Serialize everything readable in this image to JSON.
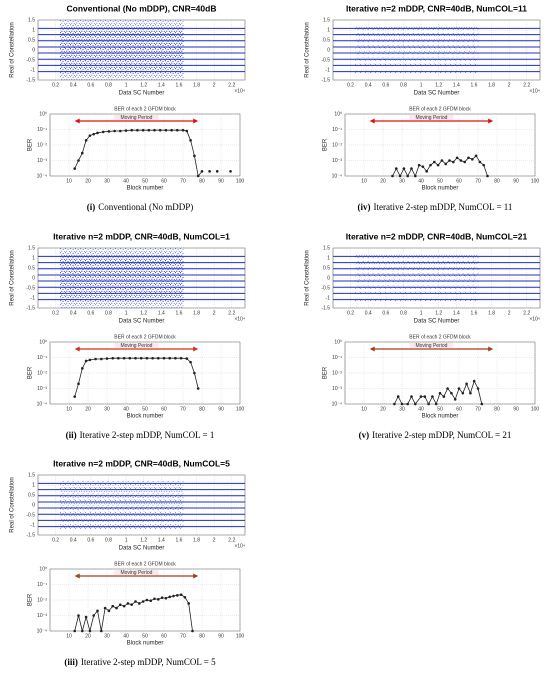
{
  "chart_data": [
    {
      "caption_label": "(i)",
      "caption": "Conventional (No mDDP)",
      "constellation": {
        "type": "constellation",
        "title": "Conventional (No mDDP), CNR=40dB",
        "x_label": "Data SC Number",
        "y_label": "Real of Constellation",
        "x_exponent": "×10⁴",
        "xlim": [
          0,
          23500
        ],
        "xticks": [
          {
            "value": 2000,
            "label": "0.2"
          },
          {
            "value": 4000,
            "label": "0.4"
          },
          {
            "value": 6000,
            "label": "0.6"
          },
          {
            "value": 8000,
            "label": "0.8"
          },
          {
            "value": 10000,
            "label": "1"
          },
          {
            "value": 12000,
            "label": "1.2"
          },
          {
            "value": 14000,
            "label": "1.4"
          },
          {
            "value": 16000,
            "label": "1.6"
          },
          {
            "value": 18000,
            "label": "1.8"
          },
          {
            "value": 20000,
            "label": "2"
          },
          {
            "value": 22000,
            "label": "2.2"
          }
        ],
        "ylim": [
          -1.5,
          1.5
        ],
        "yticks": [
          -1.5,
          -1,
          -0.5,
          0,
          0.5,
          1,
          1.5
        ],
        "levels": [
          -1.08,
          -0.77,
          -0.46,
          -0.15,
          0.15,
          0.46,
          0.77,
          1.08
        ],
        "noisy_range": [
          2500,
          16500
        ],
        "noise_spread": 0.5,
        "color": "#1f2fbf",
        "grid": true
      },
      "ber": {
        "type": "line",
        "title": "BER of each 2 GFDM block",
        "x_label": "Block number",
        "y_label": "BER",
        "log_y": true,
        "annotation": "Moving Period",
        "annotation_range": [
          13,
          78
        ],
        "annotation_color": "#e01010",
        "xlim": [
          0,
          100
        ],
        "xticks": [
          10,
          20,
          30,
          40,
          50,
          60,
          70,
          80,
          90,
          100
        ],
        "ylim": [
          0.0001,
          1
        ],
        "yticks": [
          {
            "value": 0.0001,
            "label": "10⁻⁴"
          },
          {
            "value": 0.001,
            "label": "10⁻³"
          },
          {
            "value": 0.01,
            "label": "10⁻²"
          },
          {
            "value": 0.1,
            "label": "10⁻¹"
          },
          {
            "value": 1,
            "label": "10⁰"
          }
        ],
        "color": "#222222",
        "grid": true,
        "x": [
          13,
          15,
          17,
          19,
          21,
          23,
          25,
          28,
          31,
          34,
          37,
          40,
          43,
          46,
          49,
          52,
          55,
          58,
          61,
          64,
          67,
          70,
          72,
          74,
          76,
          78,
          80,
          82,
          84,
          86,
          88,
          90,
          95
        ],
        "values": [
          0.0003,
          0.001,
          0.003,
          0.02,
          0.04,
          0.05,
          0.06,
          0.07,
          0.075,
          0.08,
          0.08,
          0.085,
          0.09,
          0.09,
          0.09,
          0.09,
          0.09,
          0.09,
          0.09,
          0.09,
          0.09,
          0.09,
          0.08,
          0.02,
          0.002,
          0.0001,
          0.0002,
          null,
          0.0002,
          null,
          0.0002,
          null,
          0.0002
        ]
      }
    },
    {
      "caption_label": "(ii)",
      "caption": "Iterative 2-step mDDP, NumCOL = 1",
      "constellation": {
        "type": "constellation",
        "title": "Iterative n=2 mDDP, CNR=40dB, NumCOL=1",
        "x_label": "Data SC Number",
        "y_label": "Real of Constellation",
        "x_exponent": "×10⁴",
        "xlim": [
          0,
          23500
        ],
        "xticks": [
          {
            "value": 2000,
            "label": "0.2"
          },
          {
            "value": 4000,
            "label": "0.4"
          },
          {
            "value": 6000,
            "label": "0.6"
          },
          {
            "value": 8000,
            "label": "0.8"
          },
          {
            "value": 10000,
            "label": "1"
          },
          {
            "value": 12000,
            "label": "1.2"
          },
          {
            "value": 14000,
            "label": "1.4"
          },
          {
            "value": 16000,
            "label": "1.6"
          },
          {
            "value": 18000,
            "label": "1.8"
          },
          {
            "value": 20000,
            "label": "2"
          },
          {
            "value": 22000,
            "label": "2.2"
          }
        ],
        "ylim": [
          -1.5,
          1.5
        ],
        "yticks": [
          -1.5,
          -1,
          -0.5,
          0,
          0.5,
          1,
          1.5
        ],
        "levels": [
          -1.08,
          -0.77,
          -0.46,
          -0.15,
          0.15,
          0.46,
          0.77,
          1.08
        ],
        "noisy_range": [
          2500,
          16500
        ],
        "noise_spread": 0.5,
        "color": "#1f2fbf",
        "grid": true
      },
      "ber": {
        "type": "line",
        "title": "BER of each 2 GFDM block",
        "x_label": "Block number",
        "y_label": "BER",
        "log_y": true,
        "annotation": "Moving Period",
        "annotation_range": [
          13,
          78
        ],
        "annotation_color": "#d0301a",
        "xlim": [
          0,
          100
        ],
        "xticks": [
          10,
          20,
          30,
          40,
          50,
          60,
          70,
          80,
          90,
          100
        ],
        "ylim": [
          0.0001,
          1
        ],
        "yticks": [
          {
            "value": 0.0001,
            "label": "10⁻⁴"
          },
          {
            "value": 0.001,
            "label": "10⁻³"
          },
          {
            "value": 0.01,
            "label": "10⁻²"
          },
          {
            "value": 0.1,
            "label": "10⁻¹"
          },
          {
            "value": 1,
            "label": "10⁰"
          }
        ],
        "color": "#222222",
        "grid": true,
        "x": [
          13,
          15,
          17,
          19,
          21,
          24,
          27,
          30,
          33,
          36,
          39,
          42,
          45,
          48,
          51,
          54,
          57,
          60,
          63,
          66,
          69,
          72,
          74,
          76,
          78
        ],
        "values": [
          0.0003,
          0.002,
          0.02,
          0.06,
          0.07,
          0.08,
          0.08,
          0.085,
          0.09,
          0.09,
          0.09,
          0.09,
          0.09,
          0.09,
          0.09,
          0.09,
          0.09,
          0.09,
          0.09,
          0.09,
          0.09,
          0.085,
          0.05,
          0.01,
          0.001
        ]
      }
    },
    {
      "caption_label": "(iii)",
      "caption": "Iterative 2-step mDDP, NumCOL = 5",
      "constellation": {
        "type": "constellation",
        "title": "Iterative n=2 mDDP, CNR=40dB, NumCOL=5",
        "x_label": "Data SC Number",
        "y_label": "Real of Constellation",
        "x_exponent": "×10⁴",
        "xlim": [
          0,
          23500
        ],
        "xticks": [
          {
            "value": 2000,
            "label": "0.2"
          },
          {
            "value": 4000,
            "label": "0.4"
          },
          {
            "value": 6000,
            "label": "0.6"
          },
          {
            "value": 8000,
            "label": "0.8"
          },
          {
            "value": 10000,
            "label": "1"
          },
          {
            "value": 12000,
            "label": "1.2"
          },
          {
            "value": 14000,
            "label": "1.4"
          },
          {
            "value": 16000,
            "label": "1.6"
          },
          {
            "value": 18000,
            "label": "1.8"
          },
          {
            "value": 20000,
            "label": "2"
          },
          {
            "value": 22000,
            "label": "2.2"
          }
        ],
        "ylim": [
          -1.5,
          1.5
        ],
        "yticks": [
          -1.5,
          -1,
          -0.5,
          0,
          0.5,
          1,
          1.5
        ],
        "levels": [
          -1.08,
          -0.77,
          -0.46,
          -0.15,
          0.15,
          0.46,
          0.77,
          1.08
        ],
        "noisy_range": [
          2500,
          16500
        ],
        "noise_spread": 0.12,
        "color": "#1f2fbf",
        "grid": true
      },
      "ber": {
        "type": "line",
        "title": "BER of each 2 GFDM block",
        "x_label": "Block number",
        "y_label": "BER",
        "log_y": true,
        "annotation": "Moving Period",
        "annotation_range": [
          13,
          78
        ],
        "annotation_color": "#a0401a",
        "xlim": [
          0,
          100
        ],
        "xticks": [
          10,
          20,
          30,
          40,
          50,
          60,
          70,
          80,
          90,
          100
        ],
        "ylim": [
          0.0001,
          1
        ],
        "yticks": [
          {
            "value": 0.0001,
            "label": "10⁻⁴"
          },
          {
            "value": 0.001,
            "label": "10⁻³"
          },
          {
            "value": 0.01,
            "label": "10⁻²"
          },
          {
            "value": 0.1,
            "label": "10⁻¹"
          },
          {
            "value": 1,
            "label": "10⁰"
          }
        ],
        "color": "#222222",
        "grid": true,
        "x": [
          13,
          15,
          17,
          19,
          21,
          23,
          25,
          27,
          29,
          31,
          33,
          35,
          37,
          39,
          41,
          43,
          45,
          47,
          49,
          51,
          53,
          55,
          57,
          59,
          61,
          63,
          65,
          67,
          69,
          71,
          73,
          75
        ],
        "values": [
          0.0001,
          0.001,
          0.0001,
          0.0008,
          0.0001,
          0.001,
          0.002,
          0.0001,
          0.003,
          0.002,
          0.004,
          0.003,
          0.005,
          0.004,
          0.006,
          0.005,
          0.008,
          0.006,
          0.008,
          0.01,
          0.009,
          0.012,
          0.011,
          0.014,
          0.013,
          0.016,
          0.018,
          0.02,
          0.022,
          0.015,
          0.006,
          0.0001
        ]
      }
    },
    {
      "caption_label": "(iv)",
      "caption": "Iterative 2-step mDDP, NumCOL = 11",
      "constellation": {
        "type": "constellation",
        "title": "Iterative n=2 mDDP, CNR=40dB, NumCOL=11",
        "x_label": "Data SC Number",
        "y_label": "Real of Constellation",
        "x_exponent": "×10⁴",
        "xlim": [
          0,
          23500
        ],
        "xticks": [
          {
            "value": 2000,
            "label": "0.2"
          },
          {
            "value": 4000,
            "label": "0.4"
          },
          {
            "value": 6000,
            "label": "0.6"
          },
          {
            "value": 8000,
            "label": "0.8"
          },
          {
            "value": 10000,
            "label": "1"
          },
          {
            "value": 12000,
            "label": "1.2"
          },
          {
            "value": 14000,
            "label": "1.4"
          },
          {
            "value": 16000,
            "label": "1.6"
          },
          {
            "value": 18000,
            "label": "1.8"
          },
          {
            "value": 20000,
            "label": "2"
          },
          {
            "value": 22000,
            "label": "2.2"
          }
        ],
        "ylim": [
          -1.5,
          1.5
        ],
        "yticks": [
          -1.5,
          -1,
          -0.5,
          0,
          0.5,
          1,
          1.5
        ],
        "levels": [
          -1.08,
          -0.77,
          -0.46,
          -0.15,
          0.15,
          0.46,
          0.77,
          1.08
        ],
        "noisy_range": [
          2500,
          16500
        ],
        "noise_spread": 0.08,
        "color": "#1f2fbf",
        "grid": true
      },
      "ber": {
        "type": "line",
        "title": "BER of each 2 GFDM block",
        "x_label": "Block number",
        "y_label": "BER",
        "log_y": true,
        "annotation": "Moving Period",
        "annotation_range": [
          13,
          78
        ],
        "annotation_color": "#e01010",
        "xlim": [
          0,
          100
        ],
        "xticks": [
          10,
          20,
          30,
          40,
          50,
          60,
          70,
          80,
          90,
          100
        ],
        "ylim": [
          0.0001,
          1
        ],
        "yticks": [
          {
            "value": 0.0001,
            "label": "10⁻⁴"
          },
          {
            "value": 0.001,
            "label": "10⁻³"
          },
          {
            "value": 0.01,
            "label": "10⁻²"
          },
          {
            "value": 0.1,
            "label": "10⁻¹"
          },
          {
            "value": 1,
            "label": "10⁰"
          }
        ],
        "color": "#222222",
        "grid": true,
        "x": [
          25,
          27,
          29,
          31,
          33,
          35,
          37,
          39,
          41,
          43,
          45,
          47,
          49,
          51,
          53,
          55,
          57,
          59,
          61,
          63,
          65,
          67,
          69,
          71,
          73,
          75
        ],
        "values": [
          0.0001,
          0.0003,
          0.0001,
          0.0003,
          0.0001,
          0.0003,
          0.0001,
          0.0005,
          0.0004,
          0.0002,
          0.0005,
          0.0008,
          0.0005,
          0.001,
          0.0006,
          0.001,
          0.0008,
          0.0015,
          0.001,
          0.0008,
          0.0015,
          0.0012,
          0.002,
          0.0008,
          0.0005,
          0.0001
        ]
      }
    },
    {
      "caption_label": "(v)",
      "caption": "Iterative 2-step mDDP, NumCOL = 21",
      "constellation": {
        "type": "constellation",
        "title": "Iterative n=2 mDDP, CNR=40dB, NumCOL=21",
        "x_label": "Data SC Number",
        "y_label": "Real of Constellation",
        "x_exponent": "×10⁴",
        "xlim": [
          0,
          23500
        ],
        "xticks": [
          {
            "value": 2000,
            "label": "0.2"
          },
          {
            "value": 4000,
            "label": "0.4"
          },
          {
            "value": 6000,
            "label": "0.6"
          },
          {
            "value": 8000,
            "label": "0.8"
          },
          {
            "value": 10000,
            "label": "1"
          },
          {
            "value": 12000,
            "label": "1.2"
          },
          {
            "value": 14000,
            "label": "1.4"
          },
          {
            "value": 16000,
            "label": "1.6"
          },
          {
            "value": 18000,
            "label": "1.8"
          },
          {
            "value": 20000,
            "label": "2"
          },
          {
            "value": 22000,
            "label": "2.2"
          }
        ],
        "ylim": [
          -1.5,
          1.5
        ],
        "yticks": [
          -1.5,
          -1,
          -0.5,
          0,
          0.5,
          1,
          1.5
        ],
        "levels": [
          -1.08,
          -0.77,
          -0.46,
          -0.15,
          0.15,
          0.46,
          0.77,
          1.08
        ],
        "noisy_range": [
          2500,
          16500
        ],
        "noise_spread": 0.08,
        "color": "#1f2fbf",
        "grid": true
      },
      "ber": {
        "type": "line",
        "title": "BER of each 2 GFDM block",
        "x_label": "Block number",
        "y_label": "BER",
        "log_y": true,
        "annotation": "Moving Period",
        "annotation_range": [
          13,
          78
        ],
        "annotation_color": "#a0401a",
        "xlim": [
          0,
          100
        ],
        "xticks": [
          10,
          20,
          30,
          40,
          50,
          60,
          70,
          80,
          90,
          100
        ],
        "ylim": [
          0.0001,
          1
        ],
        "yticks": [
          {
            "value": 0.0001,
            "label": "10⁻⁴"
          },
          {
            "value": 0.001,
            "label": "10⁻³"
          },
          {
            "value": 0.01,
            "label": "10⁻²"
          },
          {
            "value": 0.1,
            "label": "10⁻¹"
          },
          {
            "value": 1,
            "label": "10⁰"
          }
        ],
        "color": "#222222",
        "grid": true,
        "x": [
          26,
          28,
          30,
          33,
          35,
          37,
          40,
          42,
          44,
          46,
          48,
          50,
          52,
          54,
          56,
          58,
          60,
          62,
          64,
          66,
          68,
          70,
          72
        ],
        "values": [
          0.0001,
          0.0003,
          0.0001,
          0.0001,
          0.0003,
          0.0001,
          0.0003,
          0.0003,
          0.0001,
          0.0003,
          0.0001,
          0.0005,
          0.0003,
          0.001,
          0.0005,
          0.0002,
          0.001,
          0.0005,
          0.002,
          0.0005,
          0.003,
          0.001,
          0.0001
        ]
      }
    }
  ]
}
